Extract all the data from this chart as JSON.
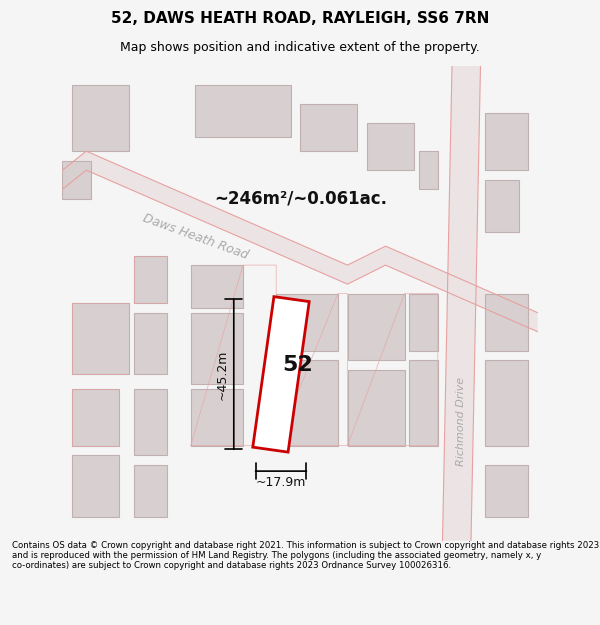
{
  "title": "52, DAWS HEATH ROAD, RAYLEIGH, SS6 7RN",
  "subtitle": "Map shows position and indicative extent of the property.",
  "footer": "Contains OS data © Crown copyright and database right 2021. This information is subject to Crown copyright and database rights 2023 and is reproduced with the permission of HM Land Registry. The polygons (including the associated geometry, namely x, y co-ordinates) are subject to Crown copyright and database rights 2023 Ordnance Survey 100026316.",
  "bg_color": "#f5f5f5",
  "map_bg": "#f0eeee",
  "road_color": "#e8a0a0",
  "building_color": "#d8d0d0",
  "building_outline": "#c0b0b0",
  "highlight_color": "#cc0000",
  "highlight_fill": "#ffffff",
  "dim_color": "#222222",
  "area_text": "~246m²/~0.061ac.",
  "label_52": "52",
  "dim_height": "~45.2m",
  "dim_width": "~17.9m",
  "road_label_1": "Daws Heath Road",
  "road_label_2": "Richmond Drive",
  "fig_width": 6.0,
  "fig_height": 6.25,
  "dpi": 100
}
